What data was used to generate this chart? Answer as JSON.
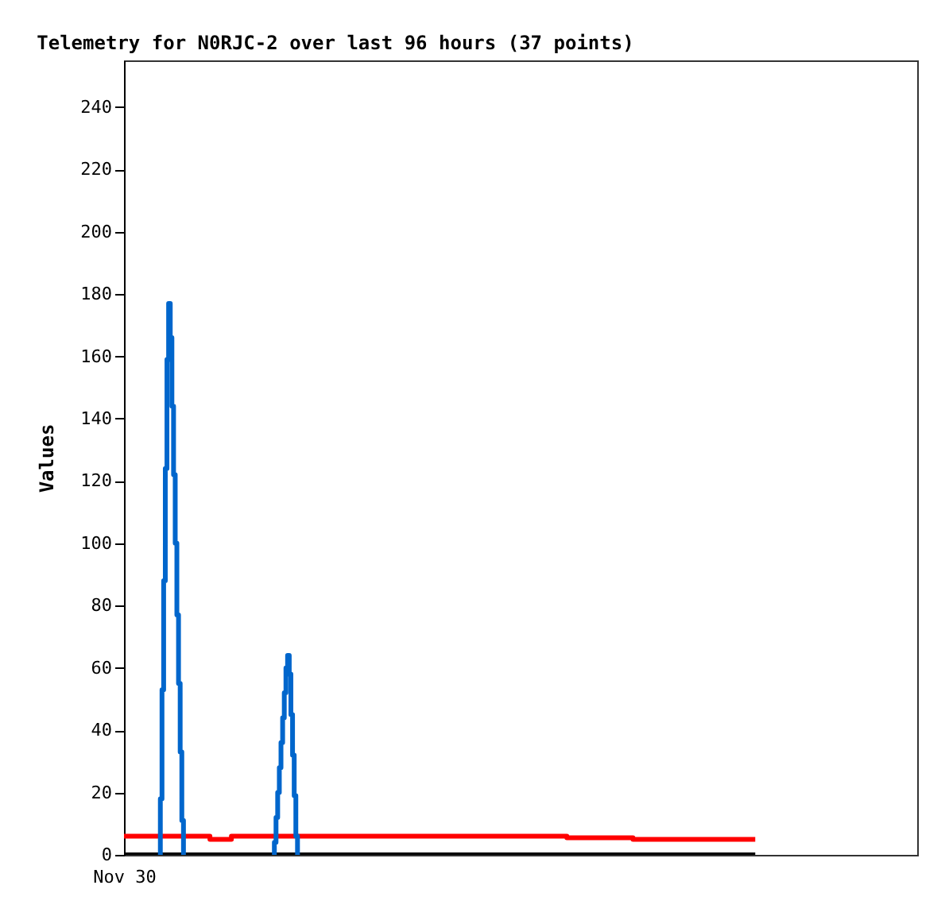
{
  "chart_data": {
    "type": "step",
    "title": "Telemetry for N0RJC-2 over last 96 hours (37 points)",
    "ylabel": "Values",
    "categories": [
      "Nov 30",
      null,
      null,
      null,
      null,
      null,
      null,
      null,
      null,
      null,
      null,
      null,
      null,
      null,
      null,
      null,
      null,
      null,
      null,
      null,
      null,
      null,
      null,
      null,
      null,
      null,
      null,
      null,
      null,
      null,
      null,
      null,
      null,
      null,
      null,
      null,
      null,
      null,
      null,
      null,
      null,
      null,
      null,
      null,
      null,
      null,
      null,
      null,
      null,
      null,
      null,
      null,
      null,
      null,
      null,
      null,
      null,
      null,
      null,
      null,
      null,
      null,
      null,
      null,
      null,
      null,
      null,
      null,
      null,
      null,
      null,
      null,
      null,
      null,
      null,
      null,
      null,
      null,
      null,
      null,
      null,
      null,
      null,
      null,
      null,
      null,
      null,
      null,
      null,
      null,
      null,
      null,
      null,
      null,
      null,
      null,
      null,
      null,
      null,
      null,
      null,
      null,
      null,
      null,
      null,
      null,
      null,
      null,
      null,
      null,
      null,
      null,
      null,
      null,
      null,
      null,
      null,
      null,
      null,
      null,
      null,
      null,
      null,
      null,
      null,
      null,
      null,
      null,
      null,
      null,
      null,
      null,
      null,
      null,
      null,
      null,
      null,
      null,
      null,
      null,
      null,
      null,
      null,
      null,
      null,
      null,
      null,
      null,
      null,
      null,
      null,
      null,
      null,
      null,
      null,
      null,
      null,
      null,
      null,
      null,
      null,
      null,
      null,
      null,
      null,
      null,
      null,
      null,
      null,
      null,
      null,
      null,
      null,
      null,
      null,
      null,
      null,
      null,
      null,
      null,
      null,
      null,
      null,
      null,
      null,
      null,
      null,
      null,
      null,
      null,
      null,
      null,
      null,
      null,
      null,
      null,
      null,
      null,
      null,
      null,
      null,
      null,
      null,
      null,
      null,
      null,
      null,
      null,
      null,
      null,
      null,
      null,
      null,
      null,
      null,
      null,
      null,
      null,
      null,
      null,
      null,
      null,
      null,
      null,
      null,
      null,
      null,
      null,
      null,
      null,
      null,
      null,
      null,
      null,
      null,
      null,
      null,
      null,
      null,
      null,
      null,
      null,
      null,
      null,
      null,
      null,
      null,
      null,
      null,
      null,
      null,
      null,
      null,
      null,
      null,
      null,
      null,
      null,
      null,
      null,
      null,
      null,
      null,
      null,
      null,
      null,
      null,
      null,
      null,
      null,
      null,
      null,
      null,
      null,
      null,
      null,
      null,
      null,
      null,
      null,
      null,
      null,
      null,
      null,
      null,
      null,
      null,
      null,
      null,
      null,
      null,
      null,
      null,
      null,
      null,
      null,
      null,
      null,
      null,
      null,
      null,
      null,
      null,
      null,
      null,
      null,
      null,
      null,
      null,
      null,
      null,
      null,
      null,
      null,
      null,
      null,
      null,
      null,
      null,
      null,
      null,
      null,
      null,
      null,
      null,
      null,
      null,
      null,
      null,
      null,
      null,
      null,
      null,
      null,
      null,
      null,
      null,
      null,
      null,
      null,
      null,
      null,
      null,
      null,
      null,
      null,
      null,
      null,
      null,
      null,
      null,
      null,
      null,
      null,
      null,
      null,
      null,
      null,
      null,
      null,
      null,
      null,
      null,
      null,
      null,
      null,
      null,
      null,
      null,
      null,
      null,
      null,
      null,
      null,
      null,
      null,
      null,
      null,
      null,
      null,
      null,
      null,
      null
    ],
    "ylim": [
      0,
      255
    ],
    "yticks": [
      0,
      20,
      40,
      60,
      80,
      100,
      120,
      140,
      160,
      180,
      200,
      220,
      240
    ],
    "grid": false,
    "series": [
      {
        "color": "#000000",
        "values": [
          0,
          0,
          0,
          0,
          0,
          0,
          0,
          0,
          0,
          0,
          0,
          0,
          0,
          0,
          0,
          0,
          0,
          0,
          0,
          0,
          0,
          0,
          0,
          0,
          0,
          0,
          0,
          0,
          0,
          0,
          0,
          0,
          0,
          0,
          0,
          0,
          0,
          0,
          0,
          0,
          0,
          0,
          0,
          0,
          0,
          0,
          0,
          0,
          0,
          0,
          0,
          0,
          0,
          0,
          0,
          0,
          0,
          0,
          0,
          0,
          0,
          0,
          0,
          0,
          0,
          0,
          0,
          0,
          0,
          0,
          0,
          0,
          0,
          0,
          0,
          0,
          0,
          0,
          0,
          0,
          0,
          0,
          0,
          0,
          0,
          0,
          0,
          0,
          0,
          0,
          0,
          0,
          0,
          0,
          0,
          0,
          0,
          0,
          0,
          0,
          0,
          0,
          0,
          0,
          0,
          0,
          0,
          0,
          0,
          0,
          0,
          0,
          0,
          0,
          0,
          0,
          0,
          0,
          0,
          0,
          0,
          0,
          0,
          0,
          0,
          0,
          0,
          0,
          0,
          0,
          0,
          0,
          0,
          0,
          0,
          0,
          0,
          0,
          0,
          0,
          0,
          0,
          0,
          0,
          0,
          0,
          0,
          0,
          0,
          0,
          0,
          0,
          0,
          0,
          0,
          0,
          0,
          0,
          0,
          0,
          0,
          0,
          0,
          0,
          0,
          0,
          0,
          0,
          0,
          0,
          0,
          0,
          0,
          0,
          0,
          0,
          0,
          0,
          0,
          0,
          0,
          0,
          0,
          0,
          0,
          0,
          0,
          0,
          0,
          0,
          0,
          0,
          0,
          0,
          0,
          0,
          0,
          0,
          0,
          0,
          0,
          0,
          0,
          0,
          0,
          0,
          0,
          0,
          0,
          0,
          0,
          0,
          0,
          0,
          0,
          0,
          0,
          0,
          0,
          0,
          0,
          0,
          0,
          0,
          0,
          0,
          0,
          0,
          0,
          0,
          0,
          0,
          0,
          0,
          0,
          0,
          0,
          0,
          0,
          0,
          0,
          0,
          0,
          0,
          0,
          0,
          0,
          0,
          0,
          0,
          0,
          0,
          0,
          0,
          0,
          0,
          0,
          0,
          0,
          0,
          0,
          0,
          0,
          0,
          0,
          0,
          0,
          0,
          0,
          0,
          0,
          0,
          0,
          0,
          0,
          0,
          0,
          0,
          0,
          0,
          0,
          0,
          0,
          0,
          0,
          0,
          0,
          0,
          0,
          0,
          0,
          0,
          0,
          0,
          0,
          0,
          0,
          0,
          0,
          0,
          0,
          0,
          0,
          0,
          0,
          0,
          0,
          0,
          0,
          0,
          0,
          0,
          0,
          0,
          0,
          0,
          0,
          0,
          0,
          0,
          0,
          0,
          0,
          0,
          0,
          0,
          0,
          0,
          0,
          0,
          0,
          0,
          0,
          0,
          0,
          0,
          0,
          0,
          0,
          0,
          0,
          0,
          0,
          0,
          0,
          0,
          0,
          0,
          0,
          0,
          0,
          0,
          0,
          0,
          0,
          0,
          0,
          0,
          0,
          0,
          0,
          0,
          0,
          0,
          0,
          0,
          0,
          0,
          0,
          0,
          0,
          0,
          0,
          0,
          0,
          0,
          0,
          0,
          0,
          0,
          0,
          0,
          0
        ]
      },
      {
        "color": "#ff0000",
        "values": [
          6,
          6,
          6,
          6,
          6,
          6,
          6,
          6,
          6,
          6,
          6,
          6,
          6,
          6,
          6,
          6,
          6,
          6,
          6,
          6,
          6,
          6,
          6,
          6,
          6,
          6,
          6,
          6,
          6,
          6,
          6,
          6,
          6,
          6,
          6,
          6,
          6,
          6,
          6,
          6,
          6,
          6,
          6,
          6,
          6,
          6,
          6,
          6,
          6,
          6,
          6,
          6,
          5,
          5,
          5,
          5,
          5,
          5,
          5,
          5,
          5,
          5,
          5,
          5,
          5,
          6,
          6,
          6,
          6,
          6,
          6,
          6,
          6,
          6,
          6,
          6,
          6,
          6,
          6,
          6,
          6,
          6,
          6,
          6,
          6,
          6,
          6,
          6,
          6,
          6,
          6,
          6,
          6,
          6,
          6,
          6,
          6,
          6,
          6,
          6,
          6,
          6,
          6,
          6,
          6,
          6,
          6,
          6,
          6,
          6,
          6,
          6,
          6,
          6,
          6,
          6,
          6,
          6,
          6,
          6,
          6,
          6,
          6,
          6,
          6,
          6,
          6,
          6,
          6,
          6,
          6,
          6,
          6,
          6,
          6,
          6,
          6,
          6,
          6,
          6,
          6,
          6,
          6,
          6,
          6,
          6,
          6,
          6,
          6,
          6,
          6,
          6,
          6,
          6,
          6,
          6,
          6,
          6,
          6,
          6,
          6,
          6,
          6,
          6,
          6,
          6,
          6,
          6,
          6,
          6,
          6,
          6,
          6,
          6,
          6,
          6,
          6,
          6,
          6,
          6,
          6,
          6,
          6,
          6,
          6,
          6,
          6,
          6,
          6,
          6,
          6,
          6,
          6,
          6,
          6,
          6,
          6,
          6,
          6,
          6,
          6,
          6,
          6,
          6,
          6,
          6,
          6,
          6,
          6,
          6,
          6,
          6,
          6,
          6,
          6,
          6,
          6,
          6,
          6,
          6,
          6,
          6,
          6,
          6,
          6,
          6,
          6,
          6,
          6,
          6,
          6,
          6,
          6,
          6,
          6,
          6,
          6,
          6,
          6,
          6,
          6,
          6,
          6,
          6,
          6,
          6,
          6,
          6,
          6,
          6,
          6,
          6,
          6,
          6,
          6,
          6,
          6,
          6,
          6,
          6,
          6,
          6,
          6,
          6,
          6,
          6,
          6,
          6,
          5.5,
          5.5,
          5.5,
          5.5,
          5.5,
          5.5,
          5.5,
          5.5,
          5.5,
          5.5,
          5.5,
          5.5,
          5.5,
          5.5,
          5.5,
          5.5,
          5.5,
          5.5,
          5.5,
          5.5,
          5.5,
          5.5,
          5.5,
          5.5,
          5.5,
          5.5,
          5.5,
          5.5,
          5.5,
          5.5,
          5.5,
          5.5,
          5.5,
          5.5,
          5.5,
          5.5,
          5.5,
          5.5,
          5.5,
          5.5,
          5,
          5,
          5,
          5,
          5,
          5,
          5,
          5,
          5,
          5,
          5,
          5,
          5,
          5,
          5,
          5,
          5,
          5,
          5,
          5,
          5,
          5,
          5,
          5,
          5,
          5,
          5,
          5,
          5,
          5,
          5,
          5,
          5,
          5,
          5,
          5,
          5,
          5,
          5,
          5,
          5,
          5,
          5,
          5,
          5,
          5,
          5,
          5,
          5,
          5,
          5,
          5,
          5,
          5,
          5,
          5,
          5,
          5,
          5,
          5,
          5,
          5,
          5,
          5,
          5,
          5,
          5,
          5,
          5,
          5,
          5,
          5,
          5,
          5,
          5
        ]
      },
      {
        "color": "#0066cc",
        "values": [
          null,
          null,
          null,
          null,
          null,
          null,
          null,
          null,
          null,
          null,
          null,
          null,
          null,
          null,
          null,
          null,
          null,
          null,
          null,
          null,
          null,
          0,
          18,
          53,
          88,
          124,
          159,
          177,
          166,
          144,
          122,
          100,
          77,
          55,
          33,
          11,
          0,
          null,
          null,
          null,
          null,
          null,
          null,
          null,
          null,
          null,
          null,
          null,
          null,
          null,
          null,
          null,
          null,
          null,
          null,
          null,
          null,
          null,
          null,
          null,
          null,
          null,
          null,
          null,
          null,
          null,
          null,
          null,
          null,
          null,
          null,
          null,
          null,
          null,
          null,
          null,
          null,
          null,
          null,
          null,
          null,
          null,
          null,
          null,
          null,
          null,
          null,
          null,
          null,
          null,
          0,
          4,
          12,
          20,
          28,
          36,
          44,
          52,
          60,
          64,
          58,
          45,
          32,
          19,
          6,
          0,
          null,
          null,
          null,
          null,
          null,
          null,
          null,
          null,
          null,
          null,
          null,
          null,
          null,
          null,
          null,
          null,
          null,
          null,
          null,
          null,
          null,
          null,
          null,
          null,
          null,
          null,
          null,
          null,
          null,
          null,
          null,
          null,
          null,
          null,
          null,
          null,
          null,
          null,
          null,
          null,
          null,
          null,
          null,
          null,
          null,
          null,
          null,
          null,
          null,
          null,
          null,
          null,
          null,
          null,
          null,
          null,
          null,
          null,
          null,
          null,
          null,
          null,
          null,
          null,
          null,
          null,
          null,
          null,
          null,
          null,
          null,
          null,
          null,
          null,
          null,
          null,
          null,
          null,
          null,
          null,
          null,
          null,
          null,
          null,
          null,
          null,
          null,
          null,
          null,
          null,
          null,
          null,
          null,
          null,
          null,
          null,
          null,
          null,
          null,
          null,
          null,
          null,
          null,
          null,
          null,
          null,
          null,
          null,
          null,
          null,
          null,
          null,
          null,
          null,
          null,
          null,
          null,
          null,
          null,
          null,
          null,
          null,
          null,
          null,
          null,
          null,
          null,
          null,
          null,
          null,
          null,
          null,
          null,
          null,
          null,
          null,
          null,
          null,
          null,
          null,
          null,
          null,
          null,
          null,
          null,
          null,
          null,
          null,
          null,
          null,
          null,
          null,
          null,
          null,
          null,
          null,
          null,
          null,
          null,
          null,
          null,
          null,
          null,
          null,
          null,
          null,
          null,
          null,
          null,
          null,
          null,
          null,
          null,
          null,
          null,
          null,
          null,
          null,
          null,
          null,
          null,
          null,
          null,
          null,
          null,
          null,
          null,
          null,
          null,
          null,
          null,
          null,
          null,
          null,
          null,
          null,
          null,
          null,
          null,
          null,
          null,
          null,
          null,
          null,
          null,
          null,
          null,
          null,
          null,
          null,
          null,
          null,
          null,
          null,
          null,
          null,
          null,
          null,
          null,
          null,
          null,
          null,
          null,
          null,
          null,
          null,
          null,
          null,
          null,
          null,
          null,
          null,
          null,
          null,
          null,
          null,
          null,
          null,
          null,
          null,
          null,
          null,
          null,
          null,
          null,
          null,
          null,
          null,
          null,
          null,
          null,
          null,
          null,
          null,
          null,
          null,
          null,
          null,
          null,
          null,
          null,
          null,
          null,
          null,
          null,
          null,
          null,
          null,
          null,
          null,
          null,
          null,
          null,
          null,
          null,
          null,
          null
        ]
      }
    ]
  }
}
